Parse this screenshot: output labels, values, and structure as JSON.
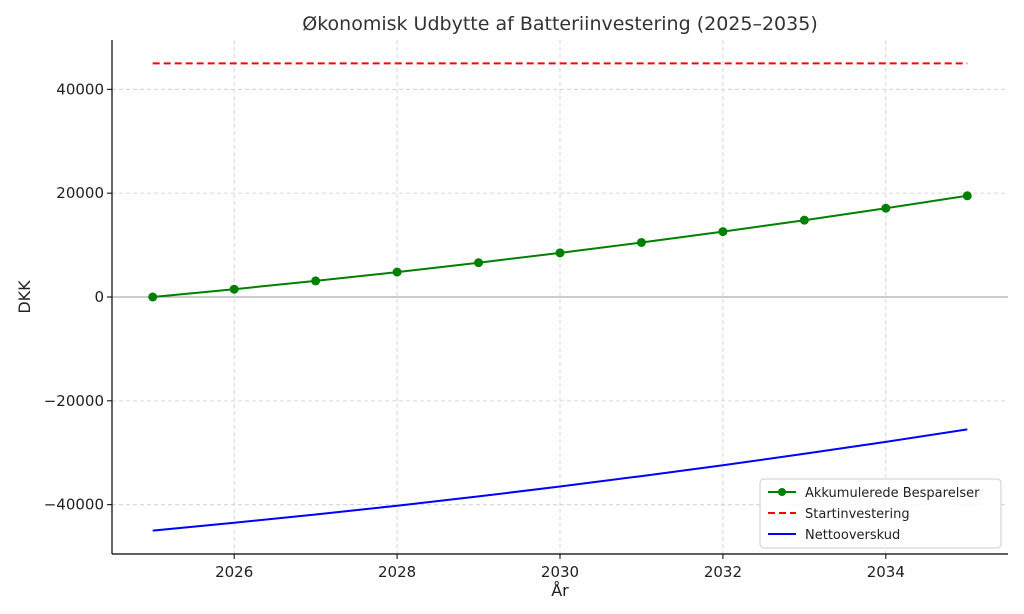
{
  "chart_data": {
    "type": "line",
    "title": "Økonomisk Udbytte af Batteriinvestering (2025–2035)",
    "xlabel": "År",
    "ylabel": "DKK",
    "xlim": [
      2024.5,
      2035.5
    ],
    "ylim": [
      -49500,
      49500
    ],
    "xticks": [
      2026,
      2028,
      2030,
      2032,
      2034
    ],
    "yticks": [
      -40000,
      -20000,
      0,
      20000,
      40000
    ],
    "ytick_labels": [
      "−40000",
      "−20000",
      "0",
      "20000",
      "40000"
    ],
    "grid": true,
    "legend_position": "lower-right",
    "zero_line": true,
    "x": [
      2025,
      2026,
      2027,
      2028,
      2029,
      2030,
      2031,
      2032,
      2033,
      2034,
      2035
    ],
    "series": [
      {
        "name": "Akkumulerede Besparelser",
        "color": "#008000",
        "style": "solid",
        "marker": "circle",
        "values": [
          0,
          1500,
          3100,
          4800,
          6600,
          8500,
          10500,
          12600,
          14800,
          17100,
          19500
        ]
      },
      {
        "name": "Startinvestering",
        "color": "#ff0000",
        "style": "dashed",
        "marker": "none",
        "values": [
          45000,
          45000,
          45000,
          45000,
          45000,
          45000,
          45000,
          45000,
          45000,
          45000,
          45000
        ]
      },
      {
        "name": "Nettooverskud",
        "color": "#0000ff",
        "style": "solid",
        "marker": "none",
        "values": [
          -45000,
          -43500,
          -41900,
          -40200,
          -38400,
          -36500,
          -34500,
          -32400,
          -30200,
          -27900,
          -25500
        ]
      }
    ]
  }
}
